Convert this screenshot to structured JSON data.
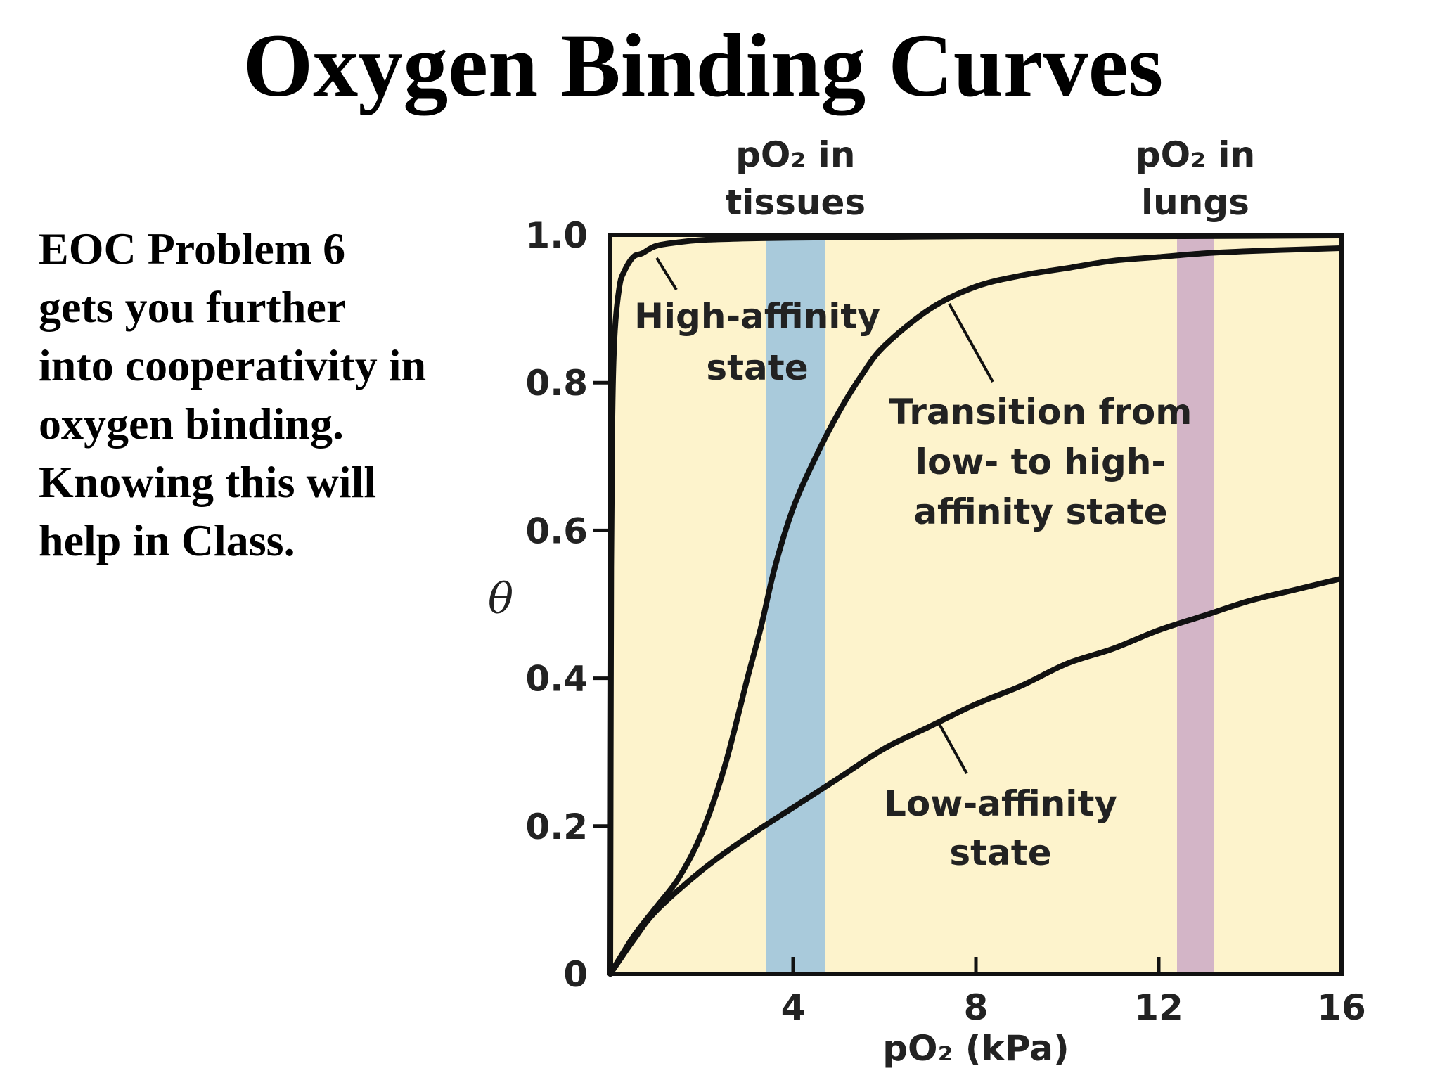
{
  "slide": {
    "title": "Oxygen Binding Curves",
    "note_lines": [
      "EOC Problem 6",
      "gets you further",
      "into cooperativity in",
      "oxygen binding.",
      "Knowing this will",
      "help in Class."
    ]
  },
  "chart_data": {
    "type": "line",
    "xlabel": "pO₂ (kPa)",
    "ylabel": "θ",
    "xlim": [
      0,
      16
    ],
    "ylim": [
      0,
      1.0
    ],
    "x_ticks": [
      4,
      8,
      12,
      16
    ],
    "x_tick_labels": [
      "4",
      "8",
      "12",
      "16"
    ],
    "y_ticks": [
      0,
      0.2,
      0.4,
      0.6,
      0.8,
      1.0
    ],
    "y_tick_labels": [
      "0",
      "0.2",
      "0.4",
      "0.6",
      "0.8",
      "1.0"
    ],
    "grid": false,
    "bands": [
      {
        "label_lines": [
          "pO₂ in",
          "tissues"
        ],
        "x_range": [
          3.4,
          4.7
        ],
        "color": "#a9cadb"
      },
      {
        "label_lines": [
          "pO₂ in",
          "lungs"
        ],
        "x_range": [
          12.4,
          13.2
        ],
        "color": "#d3b5c7"
      }
    ],
    "series": [
      {
        "name": "High-affinity state",
        "label_lines": [
          "High-affinity",
          "state"
        ],
        "x": [
          0,
          0.02,
          0.05,
          0.1,
          0.2,
          0.3,
          0.5,
          0.7,
          1.0,
          1.5,
          2.0,
          3.0,
          4.0,
          6.0,
          8.0,
          12.0,
          16.0
        ],
        "y": [
          0,
          0.55,
          0.77,
          0.87,
          0.93,
          0.95,
          0.97,
          0.975,
          0.985,
          0.99,
          0.993,
          0.995,
          0.996,
          0.997,
          0.998,
          0.998,
          0.999
        ]
      },
      {
        "name": "Transition from low- to high-affinity state",
        "label_lines": [
          "Transition from",
          "low- to high-",
          "affinity state"
        ],
        "x": [
          0,
          0.5,
          1.0,
          1.5,
          2.0,
          2.5,
          3.0,
          3.3,
          3.6,
          4.0,
          4.5,
          5.0,
          5.5,
          6.0,
          7.0,
          8.0,
          9.0,
          10.0,
          11.0,
          12.0,
          13.0,
          14.0,
          15.0,
          16.0
        ],
        "y": [
          0,
          0.05,
          0.09,
          0.13,
          0.19,
          0.28,
          0.4,
          0.47,
          0.55,
          0.63,
          0.7,
          0.76,
          0.81,
          0.85,
          0.9,
          0.93,
          0.945,
          0.955,
          0.965,
          0.97,
          0.975,
          0.978,
          0.98,
          0.982
        ]
      },
      {
        "name": "Low-affinity state",
        "label_lines": [
          "Low-affinity",
          "state"
        ],
        "x": [
          0,
          0.5,
          1.0,
          2.0,
          3.0,
          4.0,
          5.0,
          6.0,
          7.0,
          8.0,
          9.0,
          10.0,
          11.0,
          12.0,
          13.0,
          14.0,
          15.0,
          16.0
        ],
        "y": [
          0,
          0.045,
          0.085,
          0.14,
          0.185,
          0.225,
          0.265,
          0.305,
          0.335,
          0.365,
          0.39,
          0.42,
          0.44,
          0.465,
          0.485,
          0.505,
          0.52,
          0.535
        ]
      }
    ]
  },
  "colors": {
    "plot_background": "#fdf3cc",
    "curve": "#111111",
    "axis": "#111111"
  }
}
